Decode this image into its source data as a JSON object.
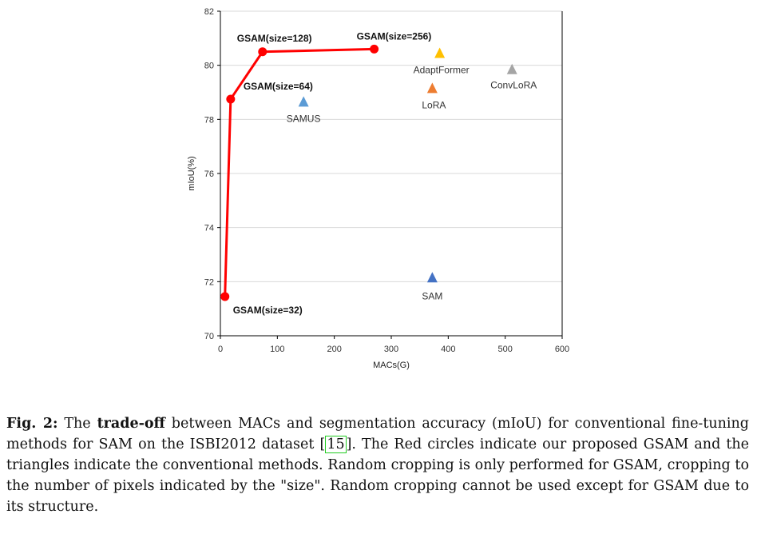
{
  "chart_data": {
    "type": "scatter",
    "xlabel": "MACs(G)",
    "ylabel": "mIoU(%)",
    "xlim": [
      0,
      600
    ],
    "ylim": [
      70,
      82
    ],
    "x_ticks": [
      "0",
      "100",
      "200",
      "300",
      "400",
      "500",
      "600"
    ],
    "y_ticks": [
      "70",
      "72",
      "74",
      "76",
      "78",
      "80",
      "82"
    ],
    "grid": "horizontal",
    "series": [
      {
        "label_style": "bold",
        "marker": "circle",
        "color": "#ff0000",
        "connected": true,
        "points": [
          {
            "label": "GSAM(size=32)",
            "x": 8,
            "y": 71.45
          },
          {
            "label": "GSAM(size=64)",
            "x": 18,
            "y": 78.75
          },
          {
            "label": "GSAM(size=128)",
            "x": 74,
            "y": 80.5
          },
          {
            "label": "GSAM(size=256)",
            "x": 270,
            "y": 80.6
          }
        ]
      },
      {
        "label_style": "normal",
        "marker": "triangle",
        "connected": false,
        "points": [
          {
            "label": "SAMUS",
            "x": 146,
            "y": 78.65,
            "color": "#5b9bd5"
          },
          {
            "label": "AdaptFormer",
            "x": 385,
            "y": 80.45,
            "color": "#ffc000"
          },
          {
            "label": "LoRA",
            "x": 372,
            "y": 79.15,
            "color": "#ed7d31"
          },
          {
            "label": "ConvLoRA",
            "x": 512,
            "y": 79.85,
            "color": "#a5a5a5"
          },
          {
            "label": "SAM",
            "x": 372,
            "y": 72.15,
            "color": "#4472c4"
          }
        ]
      }
    ]
  },
  "caption": {
    "fig_label": "Fig. 2:",
    "t1": " The ",
    "bold1": "trade-off",
    "t2": " between MACs and segmentation accuracy (mIoU) for conventional fine-tuning methods for SAM on the ISBI2012 dataset [",
    "ref": "15",
    "t3": "]. The Red circles indicate our proposed GSAM and the triangles indicate the conventional methods. Random cropping is only performed for GSAM, cropping to the number of pixels indicated by the \"size\". Random cropping cannot be used except for GSAM due to its structure."
  }
}
